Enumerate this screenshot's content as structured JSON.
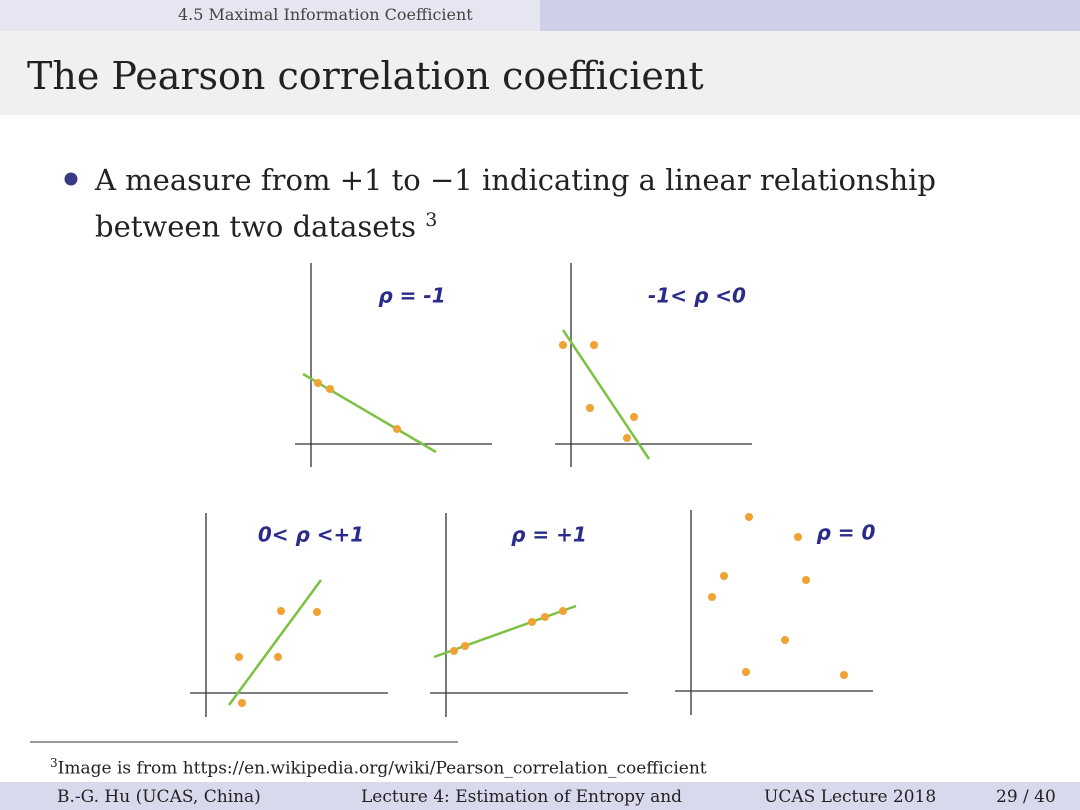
{
  "header": {
    "section": "4.5 Maximal Information Coefficient"
  },
  "title": "The Pearson correlation coefficient",
  "bullet": {
    "text": "A measure from +1 to −1 indicating a linear relationship between two datasets",
    "footnote_mark": "3"
  },
  "plots": [
    {
      "label": "ρ = -1"
    },
    {
      "label": "-1< ρ <0"
    },
    {
      "label": "0< ρ <+1"
    },
    {
      "label": "ρ = +1"
    },
    {
      "label": "ρ = 0"
    }
  ],
  "footnote": {
    "mark": "3",
    "text": "Image is from https://en.wikipedia.org/wiki/Pearson_correlation_coefficient"
  },
  "footer": {
    "author": "B.-G. Hu (UCAS, China)",
    "lecture": "Lecture 4: Estimation of Entropy and",
    "course": "UCAS Lecture 2018",
    "page": "29 / 40"
  }
}
